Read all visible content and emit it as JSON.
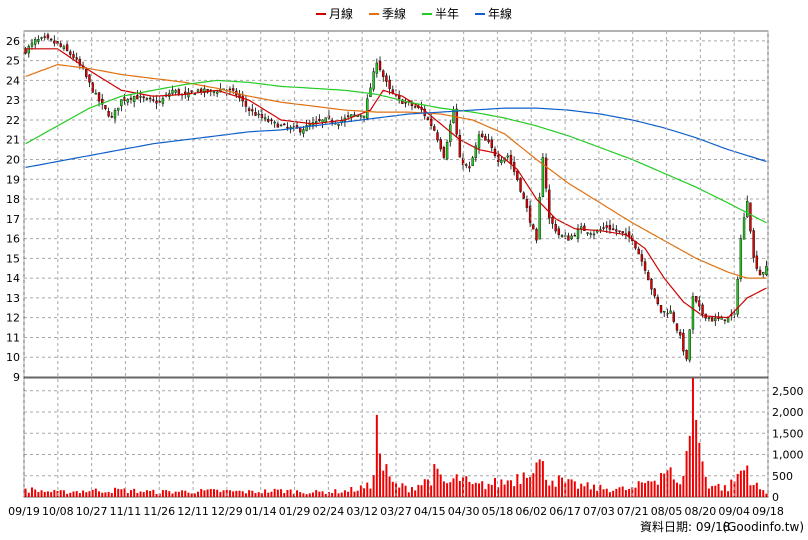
{
  "chart_data": {
    "type": "candlestick",
    "legend": {
      "placement": "top-center",
      "entries": [
        {
          "name": "月線",
          "color": "#cc0000"
        },
        {
          "name": "季線",
          "color": "#e07010"
        },
        {
          "name": "半年",
          "color": "#22cc22"
        },
        {
          "name": "年線",
          "color": "#1060cc"
        }
      ]
    },
    "price_axis": {
      "ylim": [
        9,
        26.5
      ],
      "ticks": [
        9,
        10,
        11,
        12,
        13,
        14,
        15,
        16,
        17,
        18,
        19,
        20,
        21,
        22,
        23,
        24,
        25,
        26
      ]
    },
    "volume_axis": {
      "ylim": [
        0,
        2800
      ],
      "ticks": [
        0,
        500,
        1000,
        1500,
        2000,
        2500
      ],
      "tick_labels": [
        "0",
        "500",
        "1,000",
        "1,500",
        "2,000",
        "2,500"
      ]
    },
    "x_tick_labels": [
      "09/19",
      "10/08",
      "10/27",
      "11/11",
      "11/26",
      "12/11",
      "12/29",
      "01/14",
      "01/29",
      "02/24",
      "03/12",
      "03/27",
      "04/15",
      "04/30",
      "05/18",
      "06/02",
      "06/17",
      "07/03",
      "07/21",
      "08/05",
      "08/20",
      "09/04",
      "09/18"
    ],
    "grid": true,
    "colors": {
      "up": "#22cc22",
      "down": "#dd0000",
      "volume": "#ee0000"
    },
    "close_keypoints": [
      [
        0,
        25.5
      ],
      [
        3,
        26.0
      ],
      [
        6,
        26.1
      ],
      [
        9,
        25.9
      ],
      [
        12,
        25.6
      ],
      [
        15,
        25.2
      ],
      [
        18,
        24.5
      ],
      [
        21,
        23.5
      ],
      [
        24,
        22.7
      ],
      [
        27,
        22.1
      ],
      [
        30,
        23.0
      ],
      [
        34,
        23.2
      ],
      [
        38,
        23.0
      ],
      [
        42,
        22.9
      ],
      [
        46,
        23.5
      ],
      [
        50,
        23.2
      ],
      [
        54,
        23.5
      ],
      [
        58,
        23.4
      ],
      [
        62,
        23.6
      ],
      [
        66,
        23.3
      ],
      [
        70,
        22.5
      ],
      [
        74,
        22.1
      ],
      [
        78,
        21.8
      ],
      [
        82,
        21.6
      ],
      [
        86,
        21.5
      ],
      [
        90,
        21.8
      ],
      [
        94,
        22.0
      ],
      [
        98,
        21.9
      ],
      [
        102,
        22.2
      ],
      [
        106,
        22.3
      ],
      [
        110,
        25.0
      ],
      [
        112,
        24.2
      ],
      [
        114,
        23.5
      ],
      [
        117,
        23.0
      ],
      [
        120,
        22.8
      ],
      [
        124,
        22.5
      ],
      [
        128,
        21.5
      ],
      [
        131,
        20.2
      ],
      [
        134,
        22.5
      ],
      [
        136,
        20.0
      ],
      [
        139,
        19.5
      ],
      [
        142,
        21.2
      ],
      [
        145,
        20.8
      ],
      [
        148,
        20.0
      ],
      [
        151,
        20.2
      ],
      [
        154,
        19.0
      ],
      [
        157,
        17.5
      ],
      [
        160,
        15.8
      ],
      [
        162,
        20.2
      ],
      [
        164,
        17.0
      ],
      [
        167,
        16.2
      ],
      [
        170,
        16.0
      ],
      [
        174,
        16.5
      ],
      [
        178,
        16.3
      ],
      [
        182,
        16.6
      ],
      [
        186,
        16.3
      ],
      [
        190,
        16.0
      ],
      [
        194,
        14.5
      ],
      [
        197,
        13.0
      ],
      [
        199,
        12.3
      ],
      [
        202,
        12.3
      ],
      [
        205,
        11.0
      ],
      [
        207,
        9.8
      ],
      [
        209,
        13.0
      ],
      [
        212,
        12.2
      ],
      [
        215,
        11.9
      ],
      [
        218,
        11.9
      ],
      [
        222,
        12.1
      ],
      [
        224,
        16.0
      ],
      [
        226,
        18.0
      ],
      [
        228,
        15.0
      ],
      [
        230,
        14.2
      ],
      [
        232,
        14.5
      ]
    ],
    "volume_keypoints": [
      [
        0,
        180
      ],
      [
        10,
        110
      ],
      [
        20,
        150
      ],
      [
        30,
        160
      ],
      [
        40,
        120
      ],
      [
        50,
        130
      ],
      [
        60,
        140
      ],
      [
        70,
        120
      ],
      [
        80,
        150
      ],
      [
        90,
        110
      ],
      [
        100,
        140
      ],
      [
        108,
        250
      ],
      [
        110,
        1500
      ],
      [
        112,
        700
      ],
      [
        115,
        300
      ],
      [
        120,
        200
      ],
      [
        125,
        350
      ],
      [
        128,
        550
      ],
      [
        132,
        300
      ],
      [
        136,
        450
      ],
      [
        140,
        250
      ],
      [
        145,
        300
      ],
      [
        150,
        350
      ],
      [
        155,
        500
      ],
      [
        158,
        800
      ],
      [
        161,
        750
      ],
      [
        164,
        450
      ],
      [
        170,
        300
      ],
      [
        180,
        200
      ],
      [
        190,
        180
      ],
      [
        198,
        500
      ],
      [
        201,
        700
      ],
      [
        204,
        250
      ],
      [
        207,
        850
      ],
      [
        209,
        2800
      ],
      [
        211,
        1100
      ],
      [
        214,
        300
      ],
      [
        220,
        200
      ],
      [
        224,
        600
      ],
      [
        226,
        700
      ],
      [
        228,
        300
      ],
      [
        232,
        80
      ]
    ],
    "moving_average_keypoints": {
      "月線": [
        [
          0,
          25.6
        ],
        [
          10,
          25.6
        ],
        [
          20,
          24.5
        ],
        [
          30,
          23.5
        ],
        [
          40,
          23.2
        ],
        [
          50,
          23.3
        ],
        [
          60,
          23.5
        ],
        [
          70,
          23.0
        ],
        [
          80,
          22.0
        ],
        [
          90,
          21.8
        ],
        [
          100,
          22.0
        ],
        [
          108,
          22.5
        ],
        [
          112,
          23.5
        ],
        [
          118,
          23.2
        ],
        [
          124,
          22.6
        ],
        [
          130,
          21.8
        ],
        [
          136,
          21.0
        ],
        [
          142,
          20.5
        ],
        [
          148,
          20.3
        ],
        [
          154,
          19.5
        ],
        [
          160,
          18.0
        ],
        [
          166,
          17.0
        ],
        [
          172,
          16.5
        ],
        [
          180,
          16.4
        ],
        [
          188,
          16.2
        ],
        [
          194,
          15.5
        ],
        [
          200,
          14.0
        ],
        [
          206,
          12.8
        ],
        [
          212,
          12.1
        ],
        [
          220,
          12.0
        ],
        [
          226,
          13.0
        ],
        [
          232,
          13.5
        ]
      ],
      "季線": [
        [
          0,
          24.2
        ],
        [
          10,
          24.8
        ],
        [
          20,
          24.6
        ],
        [
          30,
          24.3
        ],
        [
          40,
          24.1
        ],
        [
          50,
          23.9
        ],
        [
          60,
          23.6
        ],
        [
          70,
          23.2
        ],
        [
          80,
          22.9
        ],
        [
          90,
          22.7
        ],
        [
          100,
          22.5
        ],
        [
          110,
          22.4
        ],
        [
          120,
          22.4
        ],
        [
          130,
          22.3
        ],
        [
          140,
          22.0
        ],
        [
          150,
          21.3
        ],
        [
          160,
          20.0
        ],
        [
          170,
          18.8
        ],
        [
          180,
          17.8
        ],
        [
          190,
          16.8
        ],
        [
          200,
          15.9
        ],
        [
          210,
          15.0
        ],
        [
          220,
          14.3
        ],
        [
          226,
          14.0
        ],
        [
          232,
          14.0
        ]
      ],
      "半年": [
        [
          0,
          20.8
        ],
        [
          10,
          21.7
        ],
        [
          20,
          22.6
        ],
        [
          30,
          23.2
        ],
        [
          40,
          23.5
        ],
        [
          50,
          23.8
        ],
        [
          60,
          24.0
        ],
        [
          70,
          23.9
        ],
        [
          80,
          23.7
        ],
        [
          90,
          23.6
        ],
        [
          100,
          23.5
        ],
        [
          110,
          23.3
        ],
        [
          120,
          22.9
        ],
        [
          130,
          22.6
        ],
        [
          140,
          22.4
        ],
        [
          150,
          22.1
        ],
        [
          160,
          21.7
        ],
        [
          170,
          21.2
        ],
        [
          180,
          20.6
        ],
        [
          190,
          20.0
        ],
        [
          200,
          19.3
        ],
        [
          210,
          18.6
        ],
        [
          220,
          17.8
        ],
        [
          226,
          17.3
        ],
        [
          232,
          16.8
        ]
      ],
      "年線": [
        [
          0,
          19.6
        ],
        [
          10,
          19.9
        ],
        [
          20,
          20.2
        ],
        [
          30,
          20.5
        ],
        [
          40,
          20.8
        ],
        [
          50,
          21.0
        ],
        [
          60,
          21.2
        ],
        [
          70,
          21.4
        ],
        [
          80,
          21.5
        ],
        [
          90,
          21.7
        ],
        [
          100,
          21.9
        ],
        [
          110,
          22.1
        ],
        [
          120,
          22.3
        ],
        [
          130,
          22.4
        ],
        [
          140,
          22.5
        ],
        [
          150,
          22.6
        ],
        [
          160,
          22.6
        ],
        [
          170,
          22.5
        ],
        [
          180,
          22.3
        ],
        [
          190,
          22.0
        ],
        [
          200,
          21.6
        ],
        [
          210,
          21.1
        ],
        [
          220,
          20.5
        ],
        [
          226,
          20.2
        ],
        [
          232,
          19.9
        ]
      ]
    }
  },
  "footer": {
    "data_date": "資料日期: 09/18",
    "source": "(Goodinfo.tw)"
  }
}
